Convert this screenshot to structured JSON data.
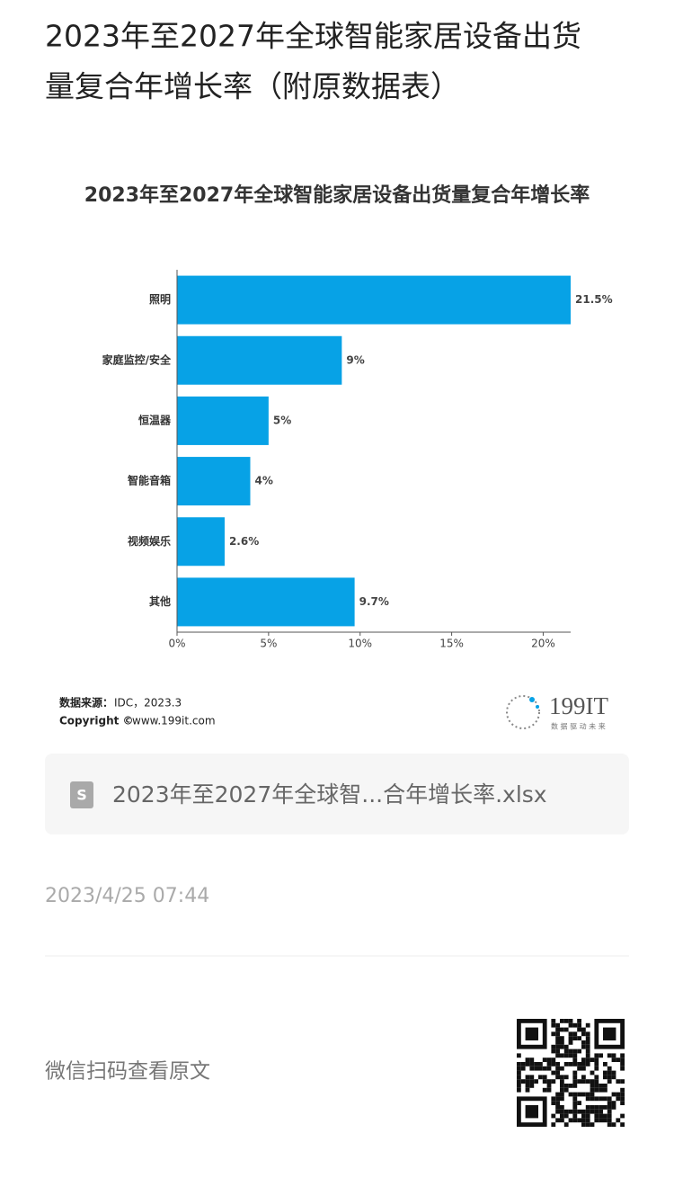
{
  "header": {
    "title_line1": "2023年至2027年全球智能家居设备出货",
    "title_line2": "量复合年增长率（附原数据表）"
  },
  "chart_data": {
    "type": "hbar",
    "title": "2023年至2027年全球智能家居设备出货量复合年增长率",
    "categories": [
      "照明",
      "家庭监控/安全",
      "恒温器",
      "智能音箱",
      "视频娱乐",
      "其他"
    ],
    "values": [
      21.5,
      9,
      5,
      4,
      2.6,
      9.7
    ],
    "value_labels": [
      "21.5%",
      "9%",
      "5%",
      "4%",
      "2.6%",
      "9.7%"
    ],
    "color": "#07a2e6",
    "xlim": [
      0,
      21.5
    ],
    "xticks": [
      {
        "value": 0,
        "label": "0%"
      },
      {
        "value": 5,
        "label": "5%"
      },
      {
        "value": 10,
        "label": "10%"
      },
      {
        "value": 15,
        "label": "15%"
      },
      {
        "value": 20,
        "label": "20%"
      }
    ],
    "grid": false,
    "source": {
      "label": "数据来源：",
      "text": "IDC，2023.3"
    },
    "copyright": {
      "label": "Copyright ©",
      "text": "www.199it.com"
    },
    "logo": {
      "name": "199IT",
      "slogan": "数 据 驱 动 未 来"
    }
  },
  "attachment": {
    "filename": "2023年至2027年全球智...合年增长率.xlsx"
  },
  "date": "2023/4/25 07:44",
  "footer": {
    "text": "微信扫码查看原文"
  }
}
